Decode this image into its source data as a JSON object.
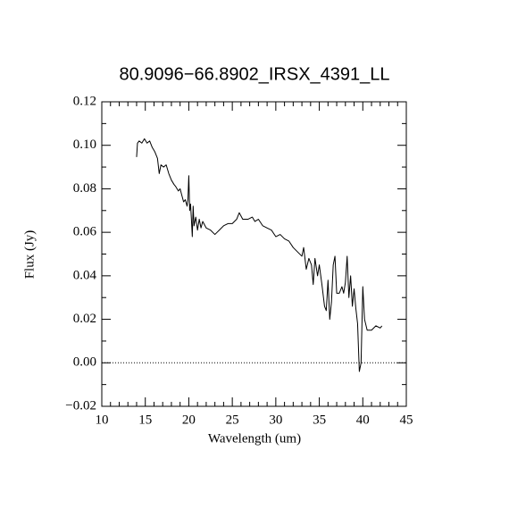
{
  "chart_data": {
    "type": "line",
    "title": "80.9096−66.8902_IRSX_4391_LL",
    "xlabel": "Wavelength (um)",
    "ylabel": "Flux (Jy)",
    "xlim": [
      10,
      45
    ],
    "ylim": [
      -0.02,
      0.12
    ],
    "xticks": [
      10,
      15,
      20,
      25,
      30,
      35,
      40,
      45
    ],
    "yticks": [
      {
        "value": -0.02,
        "label": "−0.02"
      },
      {
        "value": 0,
        "label": "0.00"
      },
      {
        "value": 0.02,
        "label": "0.02"
      },
      {
        "value": 0.04,
        "label": "0.04"
      },
      {
        "value": 0.06,
        "label": "0.06"
      },
      {
        "value": 0.08,
        "label": "0.08"
      },
      {
        "value": 0.1,
        "label": "0.10"
      },
      {
        "value": 0.12,
        "label": "0.12"
      }
    ],
    "xminor_ticks": [
      11,
      12,
      13,
      14,
      16,
      17,
      18,
      19,
      21,
      22,
      23,
      24,
      26,
      27,
      28,
      29,
      31,
      32,
      33,
      34,
      36,
      37,
      38,
      39,
      41,
      42,
      43,
      44
    ],
    "yminor_ticks": [
      -0.01,
      0.01,
      0.03,
      0.05,
      0.07,
      0.09,
      0.11
    ],
    "reference_line": 0,
    "x": [
      14.0,
      14.1,
      14.3,
      14.6,
      14.9,
      15.2,
      15.5,
      15.8,
      16.1,
      16.4,
      16.6,
      16.8,
      17.1,
      17.4,
      17.7,
      18.0,
      18.3,
      18.5,
      18.8,
      19.0,
      19.2,
      19.4,
      19.6,
      19.8,
      19.9,
      20.0,
      20.1,
      20.2,
      20.3,
      20.4,
      20.5,
      20.6,
      20.8,
      21.0,
      21.2,
      21.4,
      21.6,
      22.0,
      22.5,
      23.0,
      23.5,
      24.0,
      24.5,
      25.0,
      25.5,
      25.8,
      26.2,
      26.8,
      27.3,
      27.6,
      28.0,
      28.5,
      29.0,
      29.5,
      30.0,
      30.5,
      31.0,
      31.5,
      32.0,
      32.5,
      33.0,
      33.2,
      33.5,
      33.8,
      34.1,
      34.3,
      34.5,
      34.8,
      35.0,
      35.3,
      35.6,
      35.8,
      36.0,
      36.2,
      36.4,
      36.6,
      36.8,
      37.0,
      37.3,
      37.6,
      37.8,
      38.0,
      38.2,
      38.4,
      38.6,
      38.8,
      39.0,
      39.2,
      39.4,
      39.6,
      39.8,
      40.0,
      40.2,
      40.5,
      41.0,
      41.5,
      42.0,
      42.2
    ],
    "series": [
      {
        "color": "#000000",
        "values": [
          0.0946,
          0.101,
          0.102,
          0.101,
          0.103,
          0.101,
          0.102,
          0.099,
          0.097,
          0.094,
          0.087,
          0.091,
          0.09,
          0.091,
          0.087,
          0.084,
          0.082,
          0.081,
          0.079,
          0.08,
          0.077,
          0.074,
          0.075,
          0.072,
          0.075,
          0.086,
          0.07,
          0.073,
          0.066,
          0.058,
          0.072,
          0.063,
          0.067,
          0.061,
          0.066,
          0.062,
          0.065,
          0.062,
          0.061,
          0.059,
          0.061,
          0.063,
          0.064,
          0.064,
          0.066,
          0.069,
          0.066,
          0.066,
          0.067,
          0.065,
          0.066,
          0.063,
          0.062,
          0.061,
          0.058,
          0.059,
          0.057,
          0.056,
          0.053,
          0.051,
          0.049,
          0.053,
          0.043,
          0.048,
          0.045,
          0.036,
          0.048,
          0.04,
          0.045,
          0.036,
          0.026,
          0.024,
          0.038,
          0.02,
          0.028,
          0.045,
          0.049,
          0.032,
          0.032,
          0.035,
          0.032,
          0.037,
          0.049,
          0.03,
          0.04,
          0.026,
          0.034,
          0.025,
          0.018,
          -0.004,
          0.0,
          0.035,
          0.02,
          0.015,
          0.015,
          0.017,
          0.016,
          0.017
        ]
      }
    ]
  }
}
